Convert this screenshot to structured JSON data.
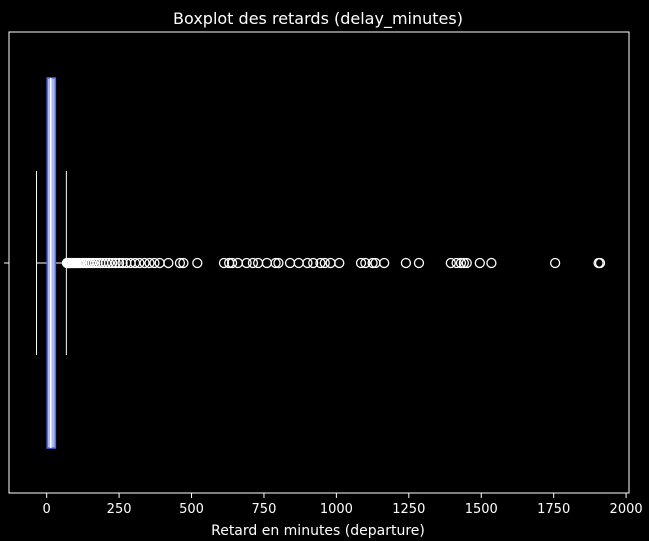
{
  "chart_data": {
    "type": "boxplot",
    "title": "Boxplot des retards (delay_minutes)",
    "xlabel": "Retard en minutes (departure)",
    "ylabel": "",
    "xlim": [
      -130,
      2010
    ],
    "xticks": [
      0,
      250,
      500,
      750,
      1000,
      1250,
      1500,
      1750,
      2000
    ],
    "xtick_labels": [
      "0",
      "250",
      "500",
      "750",
      "1000",
      "1250",
      "1500",
      "1750",
      "2000"
    ],
    "orientation": "horizontal",
    "box": {
      "whisker_low": -35,
      "q1": 2,
      "median": 14,
      "q3": 30,
      "whisker_high": 68
    },
    "outliers": [
      70,
      72,
      75,
      78,
      80,
      83,
      86,
      90,
      94,
      98,
      102,
      107,
      112,
      118,
      124,
      130,
      137,
      144,
      152,
      160,
      168,
      176,
      185,
      195,
      205,
      215,
      226,
      238,
      250,
      262,
      275,
      290,
      305,
      320,
      338,
      355,
      372,
      390,
      420,
      460,
      472,
      520,
      612,
      630,
      640,
      660,
      690,
      712,
      730,
      760,
      790,
      800,
      840,
      870,
      900,
      920,
      945,
      960,
      980,
      1010,
      1085,
      1100,
      1125,
      1135,
      1165,
      1240,
      1285,
      1395,
      1415,
      1430,
      1440,
      1450,
      1495,
      1535,
      1755,
      1905,
      1910
    ],
    "colors": {
      "background": "#000000",
      "box_fill": "#aab8f0",
      "box_edge": "#4f6cf2",
      "foreground": "#ffffff"
    },
    "grid": false,
    "legend": "none"
  }
}
